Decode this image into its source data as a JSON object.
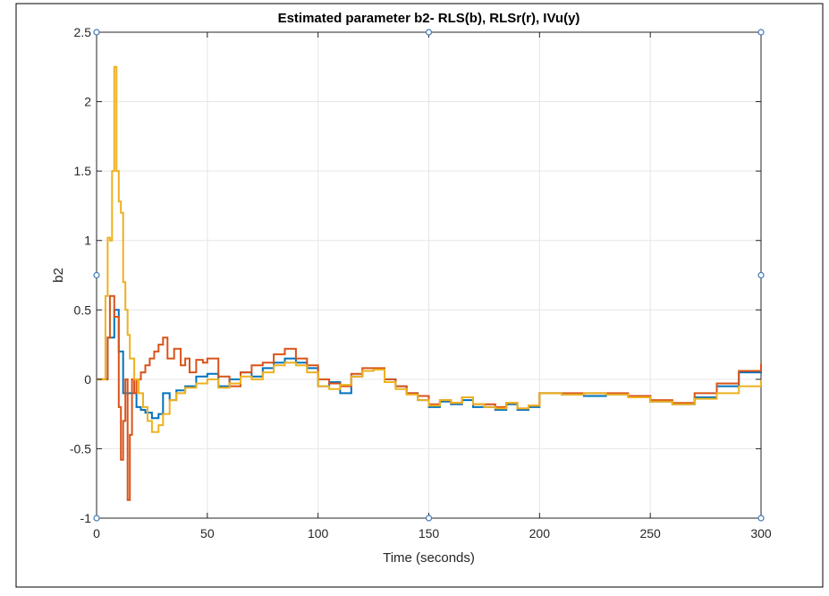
{
  "chart_data": {
    "type": "line",
    "title": "Estimated parameter b2- RLS(b), RLSr(r), IVu(y)",
    "xlabel": "Time (seconds)",
    "ylabel": "b2",
    "xlim": [
      0,
      300
    ],
    "ylim": [
      -1,
      2.5
    ],
    "xticks": [
      0,
      50,
      100,
      150,
      200,
      250,
      300
    ],
    "yticks": [
      -1,
      -0.5,
      0,
      0.5,
      1,
      1.5,
      2,
      2.5
    ],
    "xtick_labels": [
      "0",
      "50",
      "100",
      "150",
      "200",
      "250",
      "300"
    ],
    "ytick_labels": [
      "-1",
      "-0.5",
      "0",
      "0.5",
      "1",
      "1.5",
      "2",
      "2.5"
    ],
    "grid": true,
    "series": [
      {
        "color": "#0072BD",
        "x": [
          0,
          5,
          8,
          10,
          12,
          14,
          16,
          18,
          20,
          22,
          25,
          28,
          30,
          33,
          36,
          40,
          45,
          50,
          55,
          60,
          65,
          70,
          75,
          80,
          85,
          90,
          95,
          100,
          105,
          110,
          115,
          120,
          125,
          130,
          135,
          140,
          145,
          150,
          155,
          160,
          165,
          170,
          175,
          180,
          185,
          190,
          195,
          200,
          210,
          220,
          230,
          240,
          250,
          260,
          270,
          280,
          290,
          300
        ],
        "y": [
          0,
          0.3,
          0.5,
          0.2,
          -0.1,
          -0.1,
          -0.1,
          -0.2,
          -0.22,
          -0.24,
          -0.28,
          -0.25,
          -0.1,
          -0.15,
          -0.08,
          -0.05,
          0.02,
          0.04,
          -0.05,
          0.0,
          0.05,
          0.02,
          0.08,
          0.12,
          0.15,
          0.12,
          0.08,
          -0.05,
          -0.02,
          -0.1,
          0.02,
          0.06,
          0.07,
          0.0,
          -0.05,
          -0.1,
          -0.15,
          -0.2,
          -0.16,
          -0.18,
          -0.15,
          -0.2,
          -0.2,
          -0.22,
          -0.18,
          -0.22,
          -0.2,
          -0.1,
          -0.11,
          -0.12,
          -0.11,
          -0.12,
          -0.16,
          -0.18,
          -0.13,
          -0.05,
          0.05,
          0.1
        ]
      },
      {
        "color": "#D95319",
        "x": [
          0,
          5,
          6,
          8,
          10,
          11,
          12,
          13,
          14,
          15,
          16,
          17,
          18,
          20,
          22,
          24,
          26,
          28,
          30,
          32,
          35,
          38,
          40,
          42,
          45,
          48,
          50,
          55,
          60,
          65,
          70,
          75,
          80,
          85,
          90,
          95,
          100,
          105,
          110,
          115,
          120,
          125,
          130,
          135,
          140,
          145,
          150,
          155,
          160,
          165,
          170,
          175,
          180,
          185,
          190,
          195,
          200,
          210,
          220,
          230,
          240,
          250,
          260,
          270,
          280,
          290,
          300
        ],
        "y": [
          0,
          0.3,
          0.6,
          0.45,
          -0.2,
          -0.58,
          -0.3,
          0.0,
          -0.87,
          -0.4,
          0.0,
          -0.1,
          0.0,
          0.05,
          0.1,
          0.15,
          0.2,
          0.25,
          0.3,
          0.15,
          0.22,
          0.1,
          0.15,
          0.05,
          0.14,
          0.12,
          0.15,
          0.02,
          -0.05,
          0.05,
          0.1,
          0.12,
          0.18,
          0.22,
          0.15,
          0.1,
          0.0,
          -0.03,
          -0.05,
          0.04,
          0.08,
          0.08,
          0.0,
          -0.05,
          -0.1,
          -0.12,
          -0.18,
          -0.15,
          -0.17,
          -0.13,
          -0.18,
          -0.18,
          -0.2,
          -0.17,
          -0.21,
          -0.19,
          -0.1,
          -0.1,
          -0.1,
          -0.1,
          -0.12,
          -0.15,
          -0.17,
          -0.1,
          -0.03,
          0.06,
          0.11
        ]
      },
      {
        "color": "#EDB120",
        "x": [
          0,
          4,
          5,
          6,
          7,
          8,
          9,
          10,
          11,
          12,
          13,
          14,
          15,
          17,
          19,
          21,
          23,
          25,
          28,
          30,
          33,
          36,
          40,
          45,
          50,
          55,
          60,
          65,
          70,
          75,
          80,
          85,
          90,
          95,
          100,
          105,
          110,
          115,
          120,
          125,
          130,
          135,
          140,
          145,
          150,
          155,
          160,
          165,
          170,
          175,
          180,
          185,
          190,
          195,
          200,
          210,
          220,
          230,
          240,
          250,
          260,
          270,
          280,
          290,
          300
        ],
        "y": [
          0,
          0.6,
          1.02,
          1.0,
          1.5,
          2.25,
          1.5,
          1.28,
          1.2,
          0.7,
          0.5,
          0.32,
          0.15,
          0.0,
          -0.1,
          -0.2,
          -0.3,
          -0.38,
          -0.33,
          -0.25,
          -0.15,
          -0.1,
          -0.06,
          -0.03,
          0.0,
          -0.06,
          -0.03,
          0.02,
          0.0,
          0.05,
          0.1,
          0.12,
          0.1,
          0.05,
          -0.05,
          -0.07,
          -0.04,
          0.02,
          0.06,
          0.07,
          -0.02,
          -0.07,
          -0.11,
          -0.15,
          -0.19,
          -0.15,
          -0.17,
          -0.13,
          -0.18,
          -0.2,
          -0.21,
          -0.17,
          -0.21,
          -0.19,
          -0.1,
          -0.11,
          -0.1,
          -0.11,
          -0.13,
          -0.16,
          -0.18,
          -0.14,
          -0.1,
          -0.05,
          0.0
        ]
      }
    ]
  }
}
